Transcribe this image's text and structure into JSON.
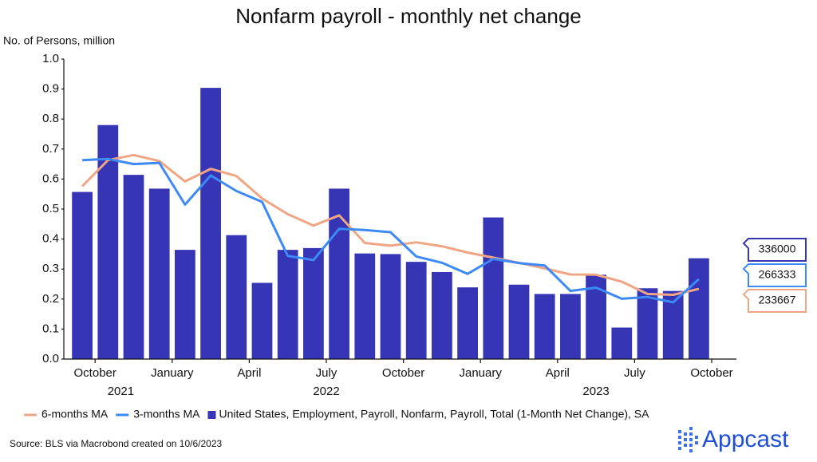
{
  "chart_data": {
    "type": "bar-line",
    "title": "Nonfarm payroll - monthly net change",
    "y_label": "No. of Persons, million",
    "source": "Source: BLS via Macrobond created on 10/6/2023",
    "brand": "Appcast",
    "x_ticks": [
      "October",
      "January",
      "April",
      "July",
      "October",
      "January",
      "April",
      "July",
      "October"
    ],
    "years": [
      "2021",
      "2022",
      "2023"
    ],
    "ylim": [
      0,
      1.0
    ],
    "yticks": [
      {
        "value": 0,
        "label": "0.0"
      },
      0.1,
      0.2,
      0.3,
      0.4,
      0.5,
      0.6,
      0.7,
      0.8,
      0.9,
      {
        "value": 1.0,
        "label": "1.0"
      }
    ],
    "grid": false,
    "series": [
      {
        "name": "6-months MA",
        "kind": "line",
        "color": "#f0a584",
        "values": [
          0.576,
          0.663,
          0.68,
          0.66,
          0.592,
          0.634,
          0.61,
          0.535,
          0.483,
          0.445,
          0.479,
          0.387,
          0.378,
          0.389,
          0.376,
          0.355,
          0.338,
          0.321,
          0.302,
          0.282,
          0.281,
          0.258,
          0.217,
          0.214,
          0.233667
        ],
        "value_labels": [
          null,
          null,
          null,
          null,
          null,
          null,
          null,
          null,
          null,
          null,
          null,
          null,
          null,
          null,
          null,
          null,
          null,
          null,
          null,
          null,
          null,
          null,
          null,
          null,
          "233667"
        ]
      },
      {
        "name": "3-months MA",
        "kind": "line",
        "color": "#3d8af7",
        "values": [
          0.663,
          0.667,
          0.65,
          0.654,
          0.515,
          0.612,
          0.56,
          0.524,
          0.344,
          0.33,
          0.434,
          0.43,
          0.423,
          0.342,
          0.321,
          0.284,
          0.334,
          0.32,
          0.312,
          0.227,
          0.238,
          0.201,
          0.207,
          0.189,
          0.266333
        ],
        "value_labels": [
          null,
          null,
          null,
          null,
          null,
          null,
          null,
          null,
          null,
          null,
          null,
          null,
          null,
          null,
          null,
          null,
          null,
          null,
          null,
          null,
          null,
          null,
          null,
          null,
          "266333"
        ]
      },
      {
        "name": "United States, Employment, Payroll, Nonfarm, Payroll, Total (1-Month Net Change), SA",
        "kind": "bar",
        "color": "#3535b5",
        "values": [
          0.557,
          0.78,
          0.614,
          0.568,
          0.364,
          0.904,
          0.413,
          0.254,
          0.364,
          0.37,
          0.568,
          0.352,
          0.35,
          0.324,
          0.29,
          0.239,
          0.472,
          0.248,
          0.217,
          0.217,
          0.281,
          0.105,
          0.236,
          0.227,
          0.336
        ],
        "value_labels": [
          null,
          null,
          null,
          null,
          null,
          null,
          null,
          null,
          null,
          null,
          null,
          null,
          null,
          null,
          null,
          null,
          null,
          null,
          null,
          null,
          null,
          null,
          null,
          null,
          "336000"
        ]
      }
    ]
  }
}
